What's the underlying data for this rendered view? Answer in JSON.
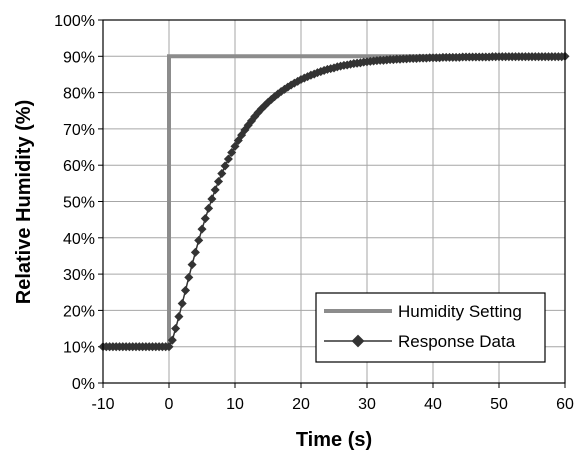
{
  "chart_data": {
    "type": "line",
    "title": "",
    "xlabel": "Time (s)",
    "ylabel": "Relative Humidity (%)",
    "xlim": [
      -10,
      60
    ],
    "ylim": [
      0,
      100
    ],
    "x_ticks": [
      -10,
      0,
      10,
      20,
      30,
      40,
      50,
      60
    ],
    "y_ticks": [
      0,
      10,
      20,
      30,
      40,
      50,
      60,
      70,
      80,
      90,
      100
    ],
    "x_tick_labels": [
      "-10",
      "0",
      "10",
      "20",
      "30",
      "40",
      "50",
      "60"
    ],
    "y_tick_labels": [
      "0%",
      "10%",
      "20%",
      "30%",
      "40%",
      "50%",
      "60%",
      "70%",
      "80%",
      "90%",
      "100%"
    ],
    "y_unit": "%",
    "grid": true,
    "legend": {
      "position": "bottom-right",
      "entries": [
        "Humidity Setting",
        "Response Data"
      ]
    },
    "series": [
      {
        "name": "Humidity Setting",
        "color": "#8c8c8c",
        "marker": "none",
        "x": [
          -10,
          0,
          0,
          60
        ],
        "y": [
          10,
          10,
          90,
          90
        ]
      },
      {
        "name": "Response Data",
        "color": "#333333",
        "marker": "diamond",
        "x": [
          -10,
          -9.5,
          -9,
          -8.5,
          -8,
          -7.5,
          -7,
          -6.5,
          -6,
          -5.5,
          -5,
          -4.5,
          -4,
          -3.5,
          -3,
          -2.5,
          -2,
          -1.5,
          -1,
          -0.5,
          0,
          0.5,
          1,
          1.5,
          2,
          2.5,
          3,
          3.5,
          4,
          4.5,
          5,
          5.5,
          6,
          6.5,
          7,
          7.5,
          8,
          8.5,
          9,
          9.5,
          10,
          10.5,
          11,
          11.5,
          12,
          12.5,
          13,
          13.5,
          14,
          14.5,
          15,
          15.5,
          16,
          16.5,
          17,
          17.5,
          18,
          18.5,
          19,
          19.5,
          20,
          20.5,
          21,
          21.5,
          22,
          22.5,
          23,
          23.5,
          24,
          24.5,
          25,
          25.5,
          26,
          26.5,
          27,
          27.5,
          28,
          28.5,
          29,
          29.5,
          30,
          30.5,
          31,
          31.5,
          32,
          32.5,
          33,
          33.5,
          34,
          34.5,
          35,
          35.5,
          36,
          36.5,
          37,
          37.5,
          38,
          38.5,
          39,
          39.5,
          40,
          40.5,
          41,
          41.5,
          42,
          42.5,
          43,
          43.5,
          44,
          44.5,
          45,
          45.5,
          46,
          46.5,
          47,
          47.5,
          48,
          48.5,
          49,
          49.5,
          50,
          50.5,
          51,
          51.5,
          52,
          52.5,
          53,
          53.5,
          54,
          54.5,
          55,
          55.5,
          56,
          56.5,
          57,
          57.5,
          58,
          58.5,
          59,
          59.5,
          60
        ],
        "y": [
          10,
          10,
          10,
          10,
          10,
          10,
          10,
          10,
          10,
          10,
          10,
          10,
          10,
          10,
          10,
          10,
          10,
          10,
          10,
          10,
          10,
          11.8,
          15.0,
          18.3,
          21.9,
          25.5,
          29.1,
          32.6,
          36.0,
          39.3,
          42.4,
          45.3,
          48.1,
          50.7,
          53.2,
          55.5,
          57.7,
          59.8,
          61.7,
          63.5,
          65.2,
          66.8,
          68.3,
          69.7,
          71.0,
          72.2,
          73.4,
          74.5,
          75.5,
          76.4,
          77.3,
          78.1,
          78.9,
          79.6,
          80.3,
          80.9,
          81.5,
          82.1,
          82.6,
          83.1,
          83.6,
          84.0,
          84.4,
          84.8,
          85.1,
          85.5,
          85.8,
          86.1,
          86.4,
          86.6,
          86.8,
          87.1,
          87.3,
          87.5,
          87.6,
          87.8,
          88.0,
          88.1,
          88.2,
          88.4,
          88.5,
          88.6,
          88.7,
          88.8,
          88.9,
          88.9,
          89.0,
          89.1,
          89.1,
          89.2,
          89.2,
          89.3,
          89.3,
          89.4,
          89.4,
          89.4,
          89.5,
          89.5,
          89.5,
          89.6,
          89.6,
          89.6,
          89.6,
          89.7,
          89.7,
          89.7,
          89.7,
          89.7,
          89.7,
          89.8,
          89.8,
          89.8,
          89.8,
          89.8,
          89.8,
          89.8,
          89.8,
          89.8,
          89.9,
          89.9,
          89.9,
          89.9,
          89.9,
          89.9,
          89.9,
          89.9,
          89.9,
          89.9,
          89.9,
          89.9,
          89.9,
          89.9,
          89.9,
          89.9,
          89.9,
          89.9,
          89.9,
          89.9,
          89.9,
          89.9,
          90.0
        ]
      }
    ]
  }
}
